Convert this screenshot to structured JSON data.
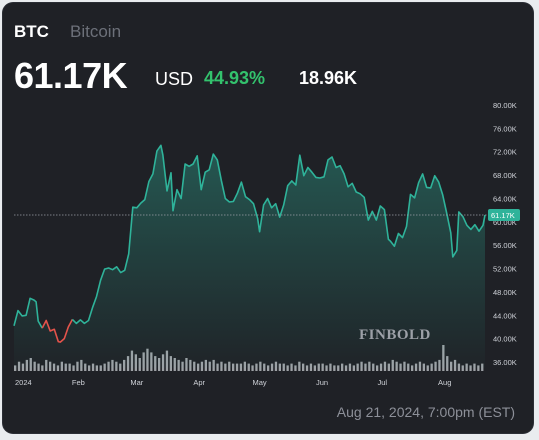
{
  "header": {
    "ticker": "BTC",
    "name": "Bitcoin",
    "price": "61.17K",
    "currency": "USD",
    "change_pct": "44.93%",
    "change_abs": "18.96K"
  },
  "footer": {
    "timestamp": "Aug 21, 2024, 7:00pm (EST)"
  },
  "watermark": "FINBOLD",
  "colors": {
    "background": "#1f2126",
    "up_line": "#2fb39a",
    "down_line": "#e5534b",
    "positive_text": "#33c26d",
    "volume": "#b5b8bd"
  },
  "chart_data": {
    "type": "line",
    "title": "",
    "xlabel": "",
    "ylabel": "",
    "y_unit": "USD",
    "ylim": [
      34000,
      82000
    ],
    "y_ticks": [
      36000,
      40000,
      44000,
      48000,
      52000,
      56000,
      60000,
      64000,
      68000,
      72000,
      76000,
      80000
    ],
    "y_tick_labels": [
      "36.00K",
      "40.00K",
      "44.00K",
      "48.00K",
      "52.00K",
      "56.00K",
      "60.00K",
      "64.00K",
      "68.00K",
      "72.00K",
      "76.00K",
      "80.00K"
    ],
    "x_tick_labels": [
      "2024",
      "Feb",
      "Mar",
      "Apr",
      "May",
      "Jun",
      "Jul",
      "Aug"
    ],
    "x_tick_dates": [
      "2024-01-01",
      "2024-02-01",
      "2024-03-01",
      "2024-04-01",
      "2024-05-01",
      "2024-06-01",
      "2024-07-01",
      "2024-08-01"
    ],
    "current_value_label": "61.17K",
    "current_value": 61170,
    "grid": false,
    "series": [
      {
        "values_by_date": [
          [
            "2023-12-31",
            42200
          ],
          [
            "2024-01-02",
            44800
          ],
          [
            "2024-01-04",
            43900
          ],
          [
            "2024-01-06",
            44000
          ],
          [
            "2024-01-08",
            46900
          ],
          [
            "2024-01-10",
            46600
          ],
          [
            "2024-01-11",
            46300
          ],
          [
            "2024-01-12",
            43000
          ],
          [
            "2024-01-14",
            41800
          ],
          [
            "2024-01-16",
            43100
          ],
          [
            "2024-01-18",
            41300
          ],
          [
            "2024-01-20",
            41600
          ],
          [
            "2024-01-22",
            39500
          ],
          [
            "2024-01-23",
            39400
          ],
          [
            "2024-01-25",
            40000
          ],
          [
            "2024-01-27",
            42000
          ],
          [
            "2024-01-29",
            43300
          ],
          [
            "2024-01-31",
            42600
          ],
          [
            "2024-02-02",
            43200
          ],
          [
            "2024-02-04",
            42600
          ],
          [
            "2024-02-06",
            43100
          ],
          [
            "2024-02-08",
            45300
          ],
          [
            "2024-02-10",
            47200
          ],
          [
            "2024-02-12",
            50000
          ],
          [
            "2024-02-14",
            51900
          ],
          [
            "2024-02-16",
            52100
          ],
          [
            "2024-02-18",
            51800
          ],
          [
            "2024-02-20",
            52300
          ],
          [
            "2024-02-22",
            51300
          ],
          [
            "2024-02-24",
            51700
          ],
          [
            "2024-02-26",
            54500
          ],
          [
            "2024-02-28",
            62500
          ],
          [
            "2024-03-01",
            62400
          ],
          [
            "2024-03-03",
            63200
          ],
          [
            "2024-03-05",
            63800
          ],
          [
            "2024-03-07",
            66900
          ],
          [
            "2024-03-09",
            68200
          ],
          [
            "2024-03-11",
            72100
          ],
          [
            "2024-03-13",
            73100
          ],
          [
            "2024-03-14",
            71400
          ],
          [
            "2024-03-16",
            65300
          ],
          [
            "2024-03-18",
            68400
          ],
          [
            "2024-03-19",
            61900
          ],
          [
            "2024-03-21",
            65500
          ],
          [
            "2024-03-23",
            64000
          ],
          [
            "2024-03-25",
            69900
          ],
          [
            "2024-03-27",
            69500
          ],
          [
            "2024-03-29",
            69900
          ],
          [
            "2024-03-31",
            71300
          ],
          [
            "2024-04-02",
            65500
          ],
          [
            "2024-04-04",
            68500
          ],
          [
            "2024-04-06",
            68900
          ],
          [
            "2024-04-08",
            71600
          ],
          [
            "2024-04-10",
            70600
          ],
          [
            "2024-04-12",
            67100
          ],
          [
            "2024-04-14",
            64000
          ],
          [
            "2024-04-16",
            63400
          ],
          [
            "2024-04-18",
            63500
          ],
          [
            "2024-04-20",
            64900
          ],
          [
            "2024-04-22",
            66800
          ],
          [
            "2024-04-24",
            64300
          ],
          [
            "2024-04-26",
            63800
          ],
          [
            "2024-04-28",
            63100
          ],
          [
            "2024-04-30",
            60600
          ],
          [
            "2024-05-01",
            58300
          ],
          [
            "2024-05-03",
            62900
          ],
          [
            "2024-05-05",
            64000
          ],
          [
            "2024-05-07",
            62400
          ],
          [
            "2024-05-09",
            63100
          ],
          [
            "2024-05-11",
            60800
          ],
          [
            "2024-05-13",
            62900
          ],
          [
            "2024-05-15",
            66200
          ],
          [
            "2024-05-17",
            67000
          ],
          [
            "2024-05-19",
            66300
          ],
          [
            "2024-05-21",
            71400
          ],
          [
            "2024-05-23",
            67900
          ],
          [
            "2024-05-25",
            69300
          ],
          [
            "2024-05-27",
            68500
          ],
          [
            "2024-05-29",
            67600
          ],
          [
            "2024-05-31",
            67500
          ],
          [
            "2024-06-02",
            67700
          ],
          [
            "2024-06-04",
            70600
          ],
          [
            "2024-06-06",
            71100
          ],
          [
            "2024-06-08",
            69300
          ],
          [
            "2024-06-10",
            69600
          ],
          [
            "2024-06-12",
            68200
          ],
          [
            "2024-06-14",
            66000
          ],
          [
            "2024-06-16",
            66600
          ],
          [
            "2024-06-18",
            65100
          ],
          [
            "2024-06-20",
            64800
          ],
          [
            "2024-06-22",
            64200
          ],
          [
            "2024-06-24",
            60300
          ],
          [
            "2024-06-26",
            61800
          ],
          [
            "2024-06-28",
            60300
          ],
          [
            "2024-06-30",
            62700
          ],
          [
            "2024-07-02",
            62100
          ],
          [
            "2024-07-04",
            57000
          ],
          [
            "2024-07-05",
            56700
          ],
          [
            "2024-07-07",
            55800
          ],
          [
            "2024-07-09",
            58000
          ],
          [
            "2024-07-11",
            57300
          ],
          [
            "2024-07-13",
            59200
          ],
          [
            "2024-07-15",
            64700
          ],
          [
            "2024-07-17",
            64100
          ],
          [
            "2024-07-19",
            66700
          ],
          [
            "2024-07-21",
            68200
          ],
          [
            "2024-07-23",
            65900
          ],
          [
            "2024-07-25",
            65800
          ],
          [
            "2024-07-27",
            67900
          ],
          [
            "2024-07-29",
            66800
          ],
          [
            "2024-07-31",
            64600
          ],
          [
            "2024-08-02",
            61400
          ],
          [
            "2024-08-04",
            58100
          ],
          [
            "2024-08-05",
            54000
          ],
          [
            "2024-08-07",
            55100
          ],
          [
            "2024-08-08",
            61700
          ],
          [
            "2024-08-10",
            60900
          ],
          [
            "2024-08-12",
            59400
          ],
          [
            "2024-08-14",
            58700
          ],
          [
            "2024-08-16",
            59500
          ],
          [
            "2024-08-18",
            58400
          ],
          [
            "2024-08-20",
            59400
          ],
          [
            "2024-08-21",
            61170
          ]
        ]
      }
    ],
    "volume": {
      "note": "relative volume bars along bottom, unlabeled",
      "values": [
        3,
        5,
        4,
        6,
        7,
        5,
        4,
        3,
        6,
        5,
        4,
        3,
        5,
        4,
        4,
        3,
        5,
        6,
        4,
        3,
        4,
        3,
        3,
        4,
        5,
        6,
        5,
        4,
        6,
        8,
        11,
        9,
        7,
        10,
        12,
        10,
        8,
        7,
        9,
        11,
        8,
        7,
        6,
        5,
        7,
        6,
        5,
        4,
        5,
        6,
        5,
        6,
        4,
        5,
        4,
        5,
        4,
        4,
        4,
        5,
        4,
        3,
        4,
        5,
        4,
        3,
        4,
        5,
        4,
        4,
        3,
        4,
        3,
        5,
        4,
        3,
        4,
        3,
        4,
        4,
        3,
        4,
        3,
        3,
        4,
        3,
        4,
        3,
        4,
        5,
        4,
        5,
        4,
        3,
        4,
        5,
        4,
        6,
        5,
        4,
        5,
        4,
        3,
        4,
        5,
        4,
        3,
        4,
        5,
        6,
        14,
        8,
        5,
        6,
        4,
        3,
        4,
        3,
        4,
        3,
        4
      ]
    }
  }
}
